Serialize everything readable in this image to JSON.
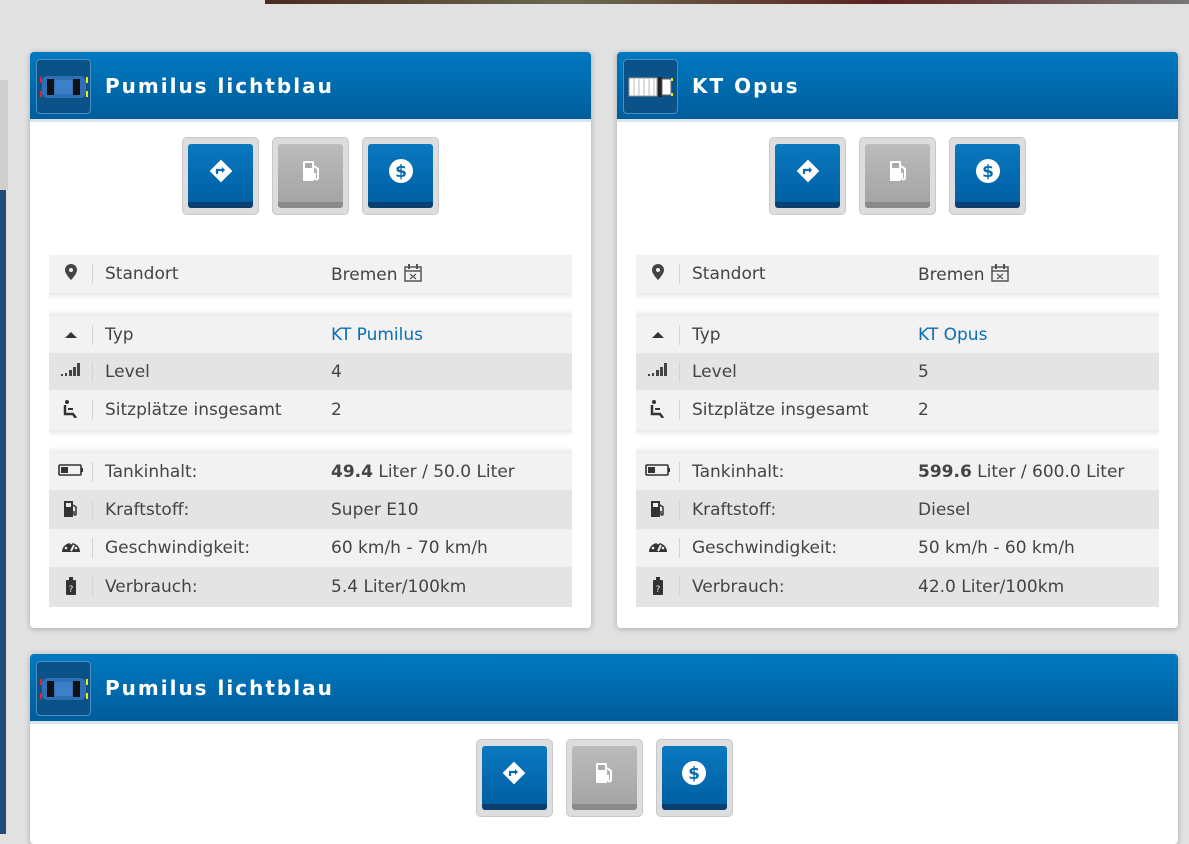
{
  "colors": {
    "header": "#0070b8",
    "link": "#0a6fb5",
    "button": "#0a78c0",
    "button_disabled": "#aaaaaa"
  },
  "buttons": [
    {
      "icon": "route-icon",
      "enabled": true
    },
    {
      "icon": "fuel-pump-icon",
      "enabled": false
    },
    {
      "icon": "dollar-icon",
      "enabled": true
    }
  ],
  "vehicles": [
    {
      "title": "Pumilus lichtblau",
      "image": "car-top-view-icon",
      "standort_label": "Standort",
      "standort": "Bremen",
      "typ_label": "Typ",
      "typ": "KT Pumilus",
      "level_label": "Level",
      "level": "4",
      "seats_label": "Sitzplätze insgesamt",
      "seats": "2",
      "tank_label": "Tankinhalt:",
      "tank_current": "49.4",
      "tank_rest": " Liter / 50.0 Liter",
      "fuel_label": "Kraftstoff:",
      "fuel": "Super E10",
      "speed_label": "Geschwindigkeit:",
      "speed": "60 km/h - 70 km/h",
      "consumption_label": "Verbrauch:",
      "consumption": "5.4 Liter/100km"
    },
    {
      "title": "KT Opus",
      "image": "truck-top-view-icon",
      "standort_label": "Standort",
      "standort": "Bremen",
      "typ_label": "Typ",
      "typ": "KT Opus",
      "level_label": "Level",
      "level": "5",
      "seats_label": "Sitzplätze insgesamt",
      "seats": "2",
      "tank_label": "Tankinhalt:",
      "tank_current": "599.6",
      "tank_rest": " Liter / 600.0 Liter",
      "fuel_label": "Kraftstoff:",
      "fuel": "Diesel",
      "speed_label": "Geschwindigkeit:",
      "speed": "50 km/h - 60 km/h",
      "consumption_label": "Verbrauch:",
      "consumption": "42.0 Liter/100km"
    },
    {
      "title": "Pumilus lichtblau",
      "image": "car-top-view-icon"
    }
  ]
}
